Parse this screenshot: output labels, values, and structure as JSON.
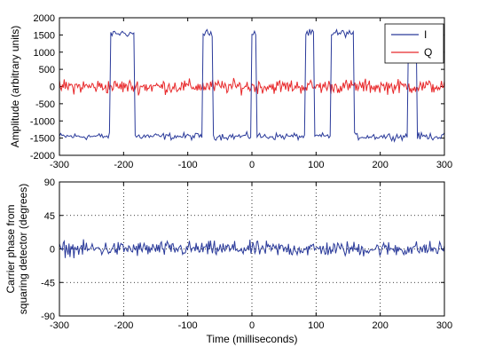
{
  "chart_data": [
    {
      "type": "line",
      "title": "",
      "xlabel": "",
      "ylabel": "Amplitude (arbitrary units)",
      "xlim": [
        -300,
        300
      ],
      "ylim": [
        -2000,
        2000
      ],
      "xticks": [
        -300,
        -200,
        -100,
        0,
        100,
        200,
        300
      ],
      "yticks": [
        -2000,
        -1500,
        -1000,
        -500,
        0,
        500,
        1000,
        1500,
        2000
      ],
      "grid": false,
      "legend": "top-right",
      "series": [
        {
          "name": "I",
          "color": "#2a3a9a",
          "kind": "square-wave with noise",
          "low_level": -1450,
          "high_level": 1550,
          "noise_amplitude": 150,
          "high_intervals": [
            [
              -220,
              -183
            ],
            [
              -77,
              -62
            ],
            [
              -1,
              6
            ],
            [
              83,
              97
            ],
            [
              123,
              159
            ],
            [
              243,
              257
            ]
          ]
        },
        {
          "name": "Q",
          "color": "#e8282a",
          "kind": "noise around zero",
          "level": 0,
          "noise_amplitude": 300
        }
      ]
    },
    {
      "type": "line",
      "title": "",
      "xlabel": "Time (milliseconds)",
      "ylabel": "Carrier phase from squaring detector (degrees)",
      "ylabel_lines": [
        "Carrier phase from",
        "squaring detector (degrees)"
      ],
      "xlim": [
        -300,
        300
      ],
      "ylim": [
        -90,
        90
      ],
      "xticks": [
        -300,
        -200,
        -100,
        0,
        100,
        200,
        300
      ],
      "yticks": [
        -90,
        -45,
        0,
        45,
        90
      ],
      "grid": true,
      "series": [
        {
          "color": "#2a3a9a",
          "kind": "noise around zero",
          "level": 0,
          "noise_amplitude": 15
        }
      ]
    }
  ]
}
